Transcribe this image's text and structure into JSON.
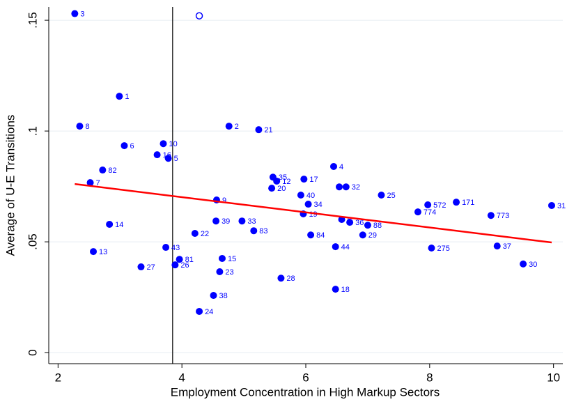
{
  "chart_data": {
    "type": "scatter",
    "x_label": "Employment Concentration in High Markup Sectors",
    "y_label": "Average of U-E Transitions",
    "xlim": [
      1.85,
      10.15
    ],
    "xticks": [
      2,
      4,
      6,
      8,
      10
    ],
    "ylim": [
      -0.005,
      0.156
    ],
    "yticks": [
      0,
      {
        "value": 0.05,
        "label": ".05"
      },
      {
        "value": 0.1,
        "label": ".1"
      },
      {
        "value": 0.15,
        "label": ".15"
      }
    ],
    "grid": true,
    "vline": 3.85,
    "series": [
      {
        "color": "#0000ff",
        "marker": "filled",
        "x": [
          2.27,
          2.99,
          2.35,
          3.07,
          3.7,
          3.6,
          3.78,
          2.72,
          2.52,
          2.83,
          2.57,
          3.34,
          3.74,
          3.96,
          3.89,
          4.21,
          4.55,
          4.56,
          4.76,
          5.24,
          5.47,
          5.45,
          5.53,
          5.97,
          6.45,
          5.92,
          6.04,
          5.96,
          4.97,
          5.16,
          4.65,
          4.61,
          5.6,
          4.51,
          4.28,
          6.08,
          6.48,
          6.48,
          6.54,
          6.65,
          6.58,
          6.71,
          7.0,
          6.92,
          7.22,
          7.97,
          7.81,
          8.43,
          8.03,
          8.99,
          9.09,
          9.51,
          9.97
        ],
        "values": [
          0.153,
          0.1157,
          0.1022,
          0.0934,
          0.0943,
          0.0893,
          0.0877,
          0.0824,
          0.0767,
          0.0579,
          0.0456,
          0.0387,
          0.0475,
          0.0421,
          0.0396,
          0.0538,
          0.0594,
          0.0689,
          0.1022,
          0.1006,
          0.0792,
          0.0742,
          0.0774,
          0.0783,
          0.084,
          0.0711,
          0.067,
          0.0626,
          0.0594,
          0.055,
          0.0425,
          0.0365,
          0.0336,
          0.0258,
          0.0186,
          0.0531,
          0.0478,
          0.0286,
          0.0748,
          0.0748,
          0.0601,
          0.0588,
          0.0575,
          0.0531,
          0.0711,
          0.0667,
          0.0635,
          0.0679,
          0.0472,
          0.0619,
          0.0481,
          0.04,
          0.0664
        ],
        "labels": [
          "3",
          "1",
          "8",
          "6",
          "10",
          "16",
          "5",
          "82",
          "7",
          "14",
          "13",
          "27",
          "43",
          "81",
          "26",
          "22",
          "39",
          "9",
          "2",
          "21",
          "35",
          "20",
          "12",
          "17",
          "4",
          "40",
          "34",
          "19",
          "33",
          "83",
          "15",
          "23",
          "28",
          "38",
          "24",
          "84",
          "44",
          "18",
          "3",
          "32",
          "6",
          "36",
          "88",
          "29",
          "25",
          "572",
          "774",
          "171",
          "275",
          "773",
          "37",
          "30",
          "31"
        ]
      },
      {
        "color": "#0000ff",
        "marker": "hollow",
        "x": [
          4.28
        ],
        "values": [
          0.152
        ]
      }
    ],
    "fit_line": {
      "color": "#ff0000",
      "x": [
        2.27,
        9.97
      ],
      "values": [
        0.0761,
        0.0497
      ]
    }
  }
}
